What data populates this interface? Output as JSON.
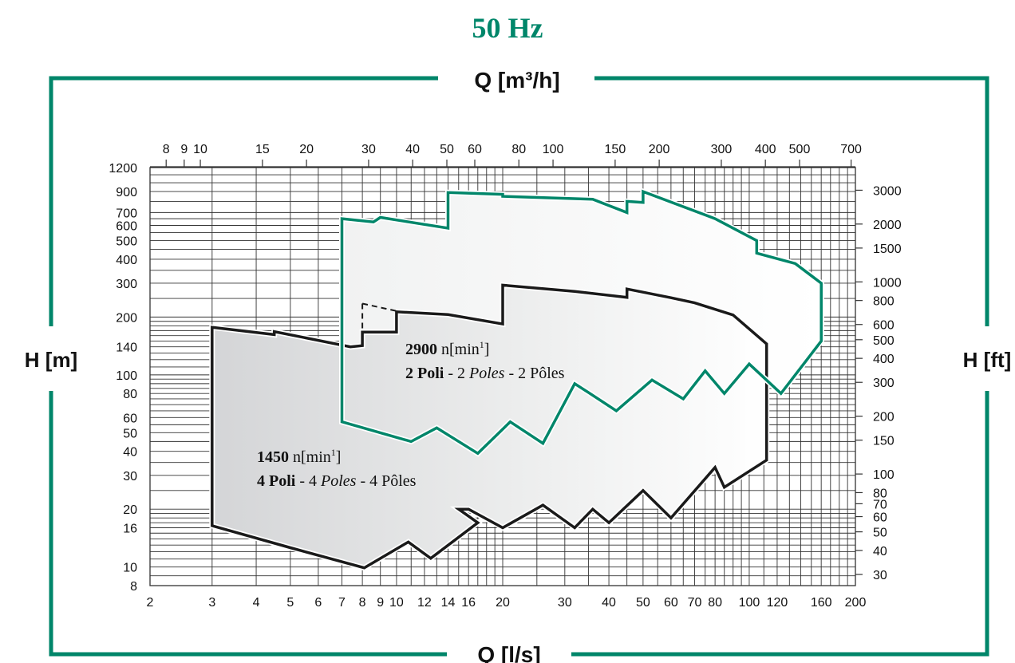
{
  "title": "50 Hz",
  "colors": {
    "accent": "#00866a",
    "curve": "#1a1a1a",
    "grid": "#333333"
  },
  "chart_data": {
    "type": "area",
    "title": "50 Hz",
    "x_bottom_label": "Q [l/s]",
    "x_top_label": "Q [m³/h]",
    "y_left_label": "H [m]",
    "y_right_label": "H [ft]",
    "x_scale": "log",
    "y_scale": "log",
    "xlim": [
      2,
      200
    ],
    "ylim": [
      8,
      1200
    ],
    "grid": true,
    "x_bottom_ticks": [
      "2",
      "3",
      "4",
      "5",
      "6",
      "7",
      "8",
      "9",
      "10",
      "12",
      "14",
      "16",
      "20",
      "30",
      "40",
      "50",
      "60",
      "70",
      "80",
      "100",
      "120",
      "160",
      "200"
    ],
    "x_top_ticks": [
      "8",
      "9",
      "10",
      "15",
      "20",
      "30",
      "40",
      "50",
      "60",
      "80",
      "100",
      "150",
      "200",
      "300",
      "400",
      "500",
      "700"
    ],
    "y_left_ticks": [
      "8",
      "10",
      "16",
      "20",
      "30",
      "40",
      "50",
      "60",
      "80",
      "100",
      "140",
      "200",
      "300",
      "400",
      "500",
      "600",
      "700",
      "900",
      "1200"
    ],
    "y_right_ticks": [
      "30",
      "40",
      "50",
      "60",
      "70",
      "80",
      "100",
      "150",
      "200",
      "300",
      "400",
      "500",
      "600",
      "800",
      "1000",
      "1500",
      "2000",
      "3000"
    ],
    "series": [
      {
        "label_bold": "2900",
        "label_unit": " n[min",
        "label_sup": "1",
        "label_close": "]",
        "line2_bold": "2 Poli",
        "line2_sep1": " - 2 ",
        "line2_italic": "Poles",
        "line2_sep2": " - 2 Pôles",
        "color": "#00866a",
        "outline": [
          [
            7,
            650
          ],
          [
            8.6,
            625
          ],
          [
            9,
            660
          ],
          [
            14,
            580
          ],
          [
            14,
            890
          ],
          [
            20,
            870
          ],
          [
            20,
            850
          ],
          [
            36,
            820
          ],
          [
            45,
            700
          ],
          [
            45,
            800
          ],
          [
            50,
            790
          ],
          [
            50,
            900
          ],
          [
            80,
            650
          ],
          [
            105,
            500
          ],
          [
            105,
            430
          ],
          [
            135,
            380
          ],
          [
            160,
            300
          ],
          [
            160,
            150
          ],
          [
            123,
            80
          ],
          [
            100,
            114
          ],
          [
            85,
            80
          ],
          [
            75,
            105
          ],
          [
            65,
            75
          ],
          [
            53,
            94
          ],
          [
            42,
            65
          ],
          [
            35,
            81
          ],
          [
            32,
            90
          ],
          [
            26,
            44
          ],
          [
            21,
            57
          ],
          [
            17,
            39
          ],
          [
            13,
            53
          ],
          [
            11,
            45
          ],
          [
            7,
            57
          ],
          [
            7,
            650
          ]
        ]
      },
      {
        "label_bold": "1450",
        "label_unit": " n[min",
        "label_sup": "1",
        "label_close": "]",
        "line2_bold": "4 Poli",
        "line2_sep1": " - 4 ",
        "line2_italic": "Poles",
        "line2_sep2": " - 4 Pôles",
        "color": "#1a1a1a",
        "outline": [
          [
            3,
            177
          ],
          [
            4.5,
            162
          ],
          [
            4.5,
            168
          ],
          [
            7.4,
            140
          ],
          [
            8,
            142
          ],
          [
            8,
            167
          ],
          [
            10,
            167
          ],
          [
            10,
            213
          ],
          [
            14,
            206
          ],
          [
            20,
            184
          ],
          [
            20,
            293
          ],
          [
            32,
            272
          ],
          [
            45,
            253
          ],
          [
            45,
            280
          ],
          [
            60,
            252
          ],
          [
            70,
            237
          ],
          [
            90,
            205
          ],
          [
            112,
            145
          ],
          [
            112,
            36
          ],
          [
            85,
            26
          ],
          [
            80,
            33
          ],
          [
            60,
            18
          ],
          [
            50,
            25
          ],
          [
            40,
            17
          ],
          [
            36,
            20
          ],
          [
            32,
            16
          ],
          [
            26,
            21
          ],
          [
            20,
            16
          ],
          [
            16,
            20
          ],
          [
            15,
            20
          ],
          [
            17,
            17
          ],
          [
            12.5,
            11.1
          ],
          [
            10.8,
            13.5
          ],
          [
            8.1,
            9.9
          ],
          [
            5,
            12.6
          ],
          [
            3,
            16.4
          ],
          [
            3,
            177
          ]
        ]
      }
    ],
    "dashed_segments": [
      [
        [
          8,
          235
        ],
        [
          8,
          165
        ]
      ],
      [
        [
          8,
          235
        ],
        [
          10,
          215
        ]
      ]
    ]
  }
}
